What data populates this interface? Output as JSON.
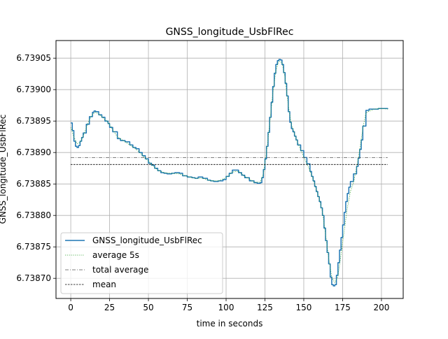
{
  "chart_data": {
    "type": "line",
    "title": "GNSS_longitude_UsbFlRec",
    "xlabel": "time in seconds",
    "ylabel": "GNSS_longitude_UsbFlRec",
    "xlim": [
      -9.5,
      214
    ],
    "ylim": [
      6.738668,
      6.739078
    ],
    "grid": true,
    "legend_placement": "lower left",
    "x_ticks": [
      0,
      25,
      50,
      75,
      100,
      125,
      150,
      175,
      200
    ],
    "x_tick_labels": [
      "0",
      "25",
      "50",
      "75",
      "100",
      "125",
      "150",
      "175",
      "200"
    ],
    "y_ticks": [
      6.7387,
      6.73875,
      6.7388,
      6.73885,
      6.7389,
      6.73895,
      6.739,
      6.73905
    ],
    "y_tick_labels": [
      "6.73870",
      "6.73875",
      "6.73880",
      "6.73885",
      "6.73890",
      "6.73895",
      "6.73900",
      "6.73905"
    ],
    "series": [
      {
        "name": "GNSS_longitude_UsbFlRec",
        "color": "#1f77b4",
        "style": "solid",
        "step": true,
        "x": [
          0,
          1,
          2,
          3,
          4,
          5,
          6,
          7,
          8,
          10,
          12,
          14,
          15,
          16,
          18,
          20,
          22,
          24,
          25,
          27,
          30,
          32,
          35,
          38,
          40,
          42,
          44,
          46,
          48,
          50,
          52,
          54,
          56,
          58,
          60,
          62,
          65,
          67,
          70,
          72,
          75,
          78,
          80,
          82,
          85,
          88,
          90,
          92,
          95,
          98,
          100,
          102,
          104,
          106,
          108,
          110,
          112,
          115,
          118,
          120,
          122,
          123,
          124,
          125,
          126,
          127,
          128,
          129,
          130,
          131,
          132,
          133,
          134,
          135,
          136,
          137,
          138,
          139,
          140,
          141,
          142,
          143,
          144,
          145,
          146,
          148,
          150,
          152,
          154,
          155,
          156,
          157,
          158,
          159,
          160,
          161,
          162,
          163,
          164,
          165,
          166,
          167,
          168,
          169,
          170,
          171,
          172,
          173,
          174,
          175,
          176,
          177,
          178,
          179,
          180,
          182,
          184,
          185,
          186,
          187,
          188,
          190,
          192,
          195,
          198,
          200,
          202,
          204
        ],
        "y": [
          6.738947,
          6.738935,
          6.738918,
          6.73891,
          6.738908,
          6.738911,
          6.738918,
          6.738924,
          6.738931,
          6.738945,
          6.738957,
          6.738964,
          6.738966,
          6.738965,
          6.73896,
          6.738956,
          6.73895,
          6.738946,
          6.73894,
          6.738933,
          6.738922,
          6.738919,
          6.738917,
          6.738912,
          6.738908,
          6.738906,
          6.7389,
          6.738895,
          6.73889,
          6.738883,
          6.73888,
          6.738875,
          6.738871,
          6.738868,
          6.738867,
          6.738866,
          6.738867,
          6.738868,
          6.738867,
          6.738863,
          6.738861,
          6.73886,
          6.738859,
          6.738861,
          6.738859,
          6.738856,
          6.738855,
          6.738854,
          6.738855,
          6.738857,
          6.738862,
          6.738867,
          6.738872,
          6.738872,
          6.738868,
          6.738864,
          6.73886,
          6.738855,
          6.738852,
          6.738851,
          6.738852,
          6.73886,
          6.738873,
          6.73889,
          6.73891,
          6.738932,
          6.738956,
          6.73898,
          6.739005,
          6.739026,
          6.73904,
          6.739046,
          6.739048,
          6.739047,
          6.73904,
          6.739027,
          6.73901,
          6.73899,
          6.738965,
          6.738948,
          6.738938,
          6.738933,
          6.738926,
          6.73892,
          6.738912,
          6.738903,
          6.738892,
          6.738882,
          6.73887,
          6.738862,
          6.738855,
          6.738846,
          6.738838,
          6.73883,
          6.738822,
          6.738812,
          6.7388,
          6.73878,
          6.73876,
          6.738741,
          6.738723,
          6.738702,
          6.73869,
          6.738688,
          6.73869,
          6.738705,
          6.738725,
          6.738745,
          6.738765,
          6.738785,
          6.738805,
          6.738822,
          6.738835,
          6.738845,
          6.738854,
          6.738866,
          6.738878,
          6.738891,
          6.738905,
          6.73892,
          6.738942,
          6.738967,
          6.738969,
          6.738969,
          6.73897,
          6.73897,
          6.73897,
          6.738969
        ]
      },
      {
        "name": "average 5s",
        "color": "#2ca02c",
        "style": "dotted",
        "step": false,
        "x": [
          0,
          2,
          4,
          6,
          8,
          10,
          12,
          14,
          16,
          18,
          20,
          24,
          30,
          35,
          40,
          44,
          48,
          52,
          56,
          60,
          65,
          70,
          75,
          80,
          85,
          90,
          95,
          100,
          104,
          108,
          112,
          118,
          122,
          124,
          126,
          128,
          130,
          132,
          134,
          136,
          138,
          140,
          142,
          144,
          146,
          150,
          154,
          156,
          158,
          160,
          162,
          164,
          166,
          168,
          170,
          172,
          174,
          176,
          178,
          180,
          182,
          184,
          186,
          188,
          190,
          195,
          200,
          204
        ],
        "y": [
          6.73894,
          6.738925,
          6.738914,
          6.738916,
          6.738926,
          6.738939,
          6.738952,
          6.738961,
          6.738964,
          6.738961,
          6.738957,
          6.738948,
          6.738925,
          6.738917,
          6.738909,
          6.738901,
          6.738891,
          6.738881,
          6.738872,
          6.738868,
          6.738867,
          6.738866,
          6.738862,
          6.738859,
          6.738859,
          6.738855,
          6.738855,
          6.73886,
          6.738869,
          6.73887,
          6.738862,
          6.738853,
          6.738853,
          6.738866,
          6.7389,
          6.738945,
          6.738992,
          6.73903,
          6.739045,
          6.739043,
          6.739018,
          6.738975,
          6.738945,
          6.73893,
          6.738916,
          6.738893,
          6.738871,
          6.738858,
          6.738842,
          6.738826,
          6.738806,
          6.73877,
          6.738733,
          6.738702,
          6.738693,
          6.738703,
          6.738738,
          6.738775,
          6.738811,
          6.738838,
          6.738852,
          6.738876,
          6.738904,
          6.738938,
          6.738963,
          6.738969,
          6.73897,
          6.738969
        ]
      },
      {
        "name": "total average",
        "color": "#555555",
        "style": "dashdot",
        "step": false,
        "x": [
          0,
          204
        ],
        "y": [
          6.738892,
          6.738892
        ]
      },
      {
        "name": "mean",
        "color": "#000000",
        "style": "dashed",
        "step": false,
        "x": [
          0,
          204
        ],
        "y": [
          6.738881,
          6.738881
        ]
      }
    ]
  }
}
